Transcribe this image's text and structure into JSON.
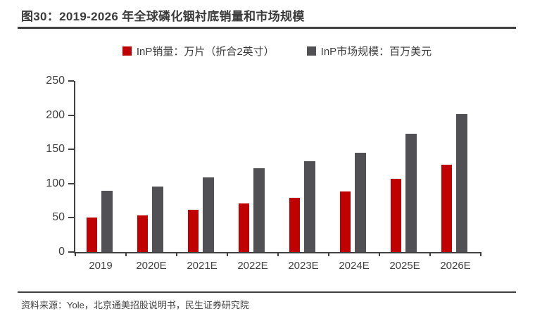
{
  "header": {
    "title": "图30：2019-2026 年全球磷化铟衬底销量和市场规模"
  },
  "chart_data": {
    "type": "bar",
    "title": "2019-2026 年全球磷化铟衬底销量和市场规模",
    "categories": [
      "2019",
      "2020E",
      "2021E",
      "2022E",
      "2023E",
      "2024E",
      "2025E",
      "2026E"
    ],
    "series": [
      {
        "name": "InP销量：万片（折合2英寸）",
        "color": "#c00000",
        "values": [
          50,
          53,
          62,
          71,
          79,
          88,
          107,
          128
        ]
      },
      {
        "name": "InP市场规模：百万美元",
        "color": "#515155",
        "values": [
          89,
          96,
          109,
          122,
          133,
          145,
          173,
          202
        ]
      }
    ],
    "xlabel": "",
    "ylabel": "",
    "ylim": [
      0,
      250
    ],
    "yticks": [
      0,
      50,
      100,
      150,
      200,
      250
    ],
    "grid": false,
    "legend_position": "top",
    "axis_color": "#404040"
  },
  "footer": {
    "source": "资料来源：Yole，北京通美招股说明书，民生证券研究院"
  }
}
